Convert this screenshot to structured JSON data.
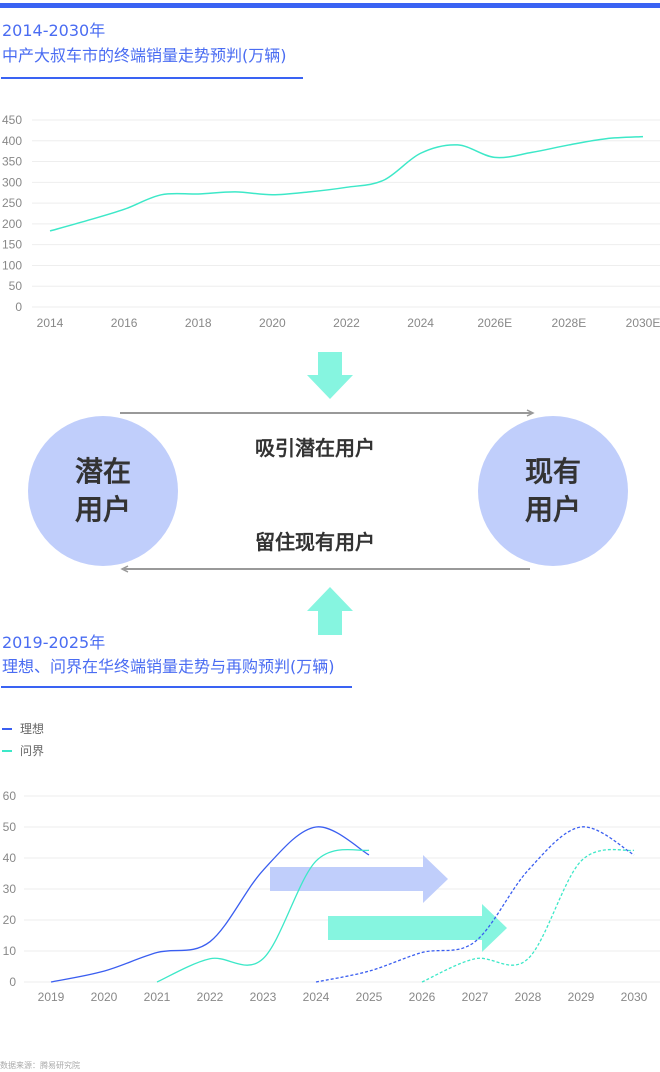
{
  "colors": {
    "accent": "#3a63f3",
    "lixiang": "#3a5ef0",
    "wenjie": "#3de8c8",
    "arrow_blue": "#c0cefb",
    "arrow_teal": "#86f5e0",
    "circle": "#c0cefb"
  },
  "chart_data": [
    {
      "type": "line",
      "title_line1": "2014-2030年",
      "title_line2": "中产大叔车市的终端销量走势预判(万辆)",
      "x": [
        2014,
        2015,
        2016,
        2017,
        2018,
        2019,
        2020,
        2021,
        2022,
        2023,
        2024,
        2025,
        2026,
        2027,
        2028,
        2029,
        2030
      ],
      "values": [
        183,
        208,
        235,
        270,
        272,
        277,
        270,
        277,
        288,
        305,
        370,
        390,
        360,
        372,
        390,
        405,
        410
      ],
      "xticks": [
        "2014",
        "2016",
        "2018",
        "2020",
        "2022",
        "2024",
        "2026E",
        "2028E",
        "2030E"
      ],
      "yticks": [
        "0",
        "50",
        "100",
        "150",
        "200",
        "250",
        "300",
        "350",
        "400",
        "450"
      ],
      "ylim": [
        0,
        450
      ],
      "grid": true
    },
    {
      "type": "line",
      "title_line1": "2019-2025年",
      "title_line2": "理想、问界在华终端销量走势与再购预判(万辆)",
      "legend": "top-left",
      "series": [
        {
          "name": "理想",
          "x": [
            2019,
            2020,
            2021,
            2022,
            2023,
            2024,
            2025
          ],
          "values": [
            0,
            3.5,
            9.5,
            13,
            36,
            50,
            41
          ]
        },
        {
          "name": "问界",
          "x": [
            2021,
            2022,
            2023,
            2024,
            2025
          ],
          "values": [
            0,
            7.5,
            7.5,
            39,
            42.5
          ]
        },
        {
          "name": "",
          "style": "dashed",
          "color_of": "理想",
          "x": [
            2024,
            2025,
            2026,
            2027,
            2028,
            2029,
            2030
          ],
          "values": [
            0,
            3.5,
            9.5,
            13,
            36,
            50,
            41
          ]
        },
        {
          "name": "",
          "style": "dashed",
          "color_of": "问界",
          "x": [
            2026,
            2027,
            2028,
            2029,
            2030
          ],
          "values": [
            0,
            7.5,
            7.5,
            39,
            42.5
          ]
        }
      ],
      "xticks": [
        "2019",
        "2020",
        "2021",
        "2022",
        "2023",
        "2024",
        "2025",
        "2026",
        "2027",
        "2028",
        "2029",
        "2030"
      ],
      "yticks": [
        "0",
        "10",
        "20",
        "30",
        "40",
        "50",
        "60"
      ],
      "ylim": [
        0,
        60
      ],
      "grid": true
    }
  ],
  "diagram": {
    "left_circle": "潜在\n用户",
    "right_circle": "现有\n用户",
    "top_flow": "吸引潜在用户",
    "bottom_flow": "留住现有用户"
  },
  "source": "数据来源：腾易研究院"
}
